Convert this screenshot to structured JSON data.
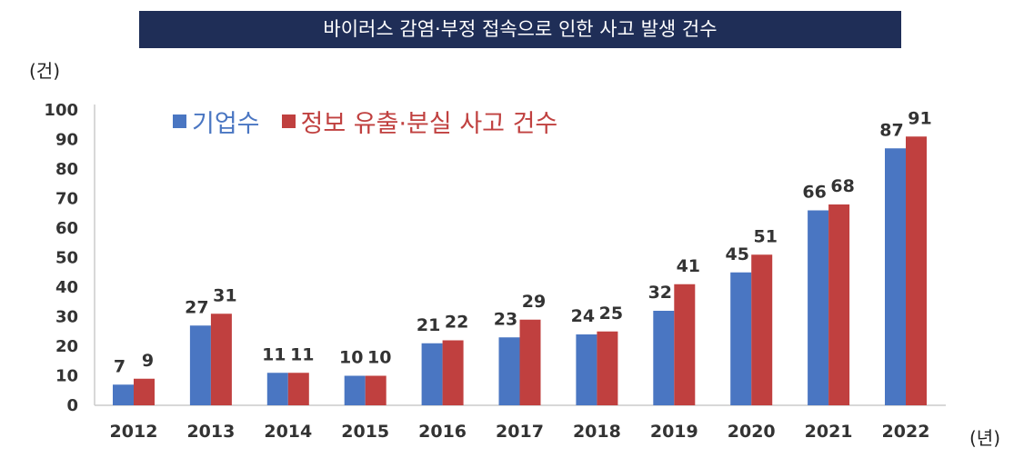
{
  "chart_data": {
    "type": "bar",
    "title": "바이러스 감염·부정 접속으로 인한 사고 발생 건수",
    "ylabel": "(건)",
    "xlabel": "(년)",
    "ylim": [
      0,
      100
    ],
    "yticks": [
      0,
      10,
      20,
      30,
      40,
      50,
      60,
      70,
      80,
      90,
      100
    ],
    "categories": [
      "2012",
      "2013",
      "2014",
      "2015",
      "2016",
      "2017",
      "2018",
      "2019",
      "2020",
      "2021",
      "2022"
    ],
    "series": [
      {
        "name": "기업수",
        "color": "#4a76c2",
        "values": [
          7,
          27,
          11,
          10,
          21,
          23,
          24,
          32,
          45,
          66,
          87
        ]
      },
      {
        "name": "정보 유출·분실 사고 건수",
        "color": "#c0403f",
        "values": [
          9,
          31,
          11,
          10,
          22,
          29,
          25,
          41,
          51,
          68,
          91
        ]
      }
    ],
    "legend_position": "top-left",
    "grid": false
  }
}
